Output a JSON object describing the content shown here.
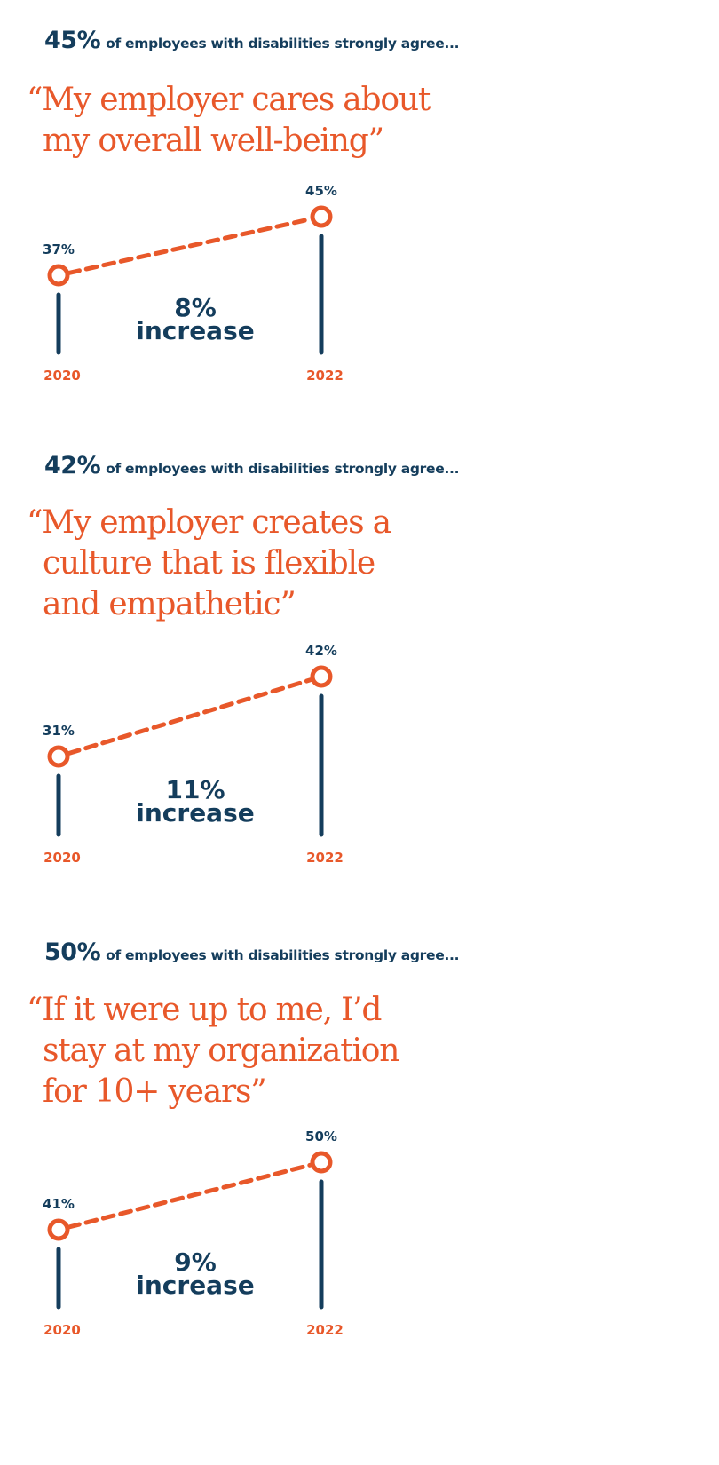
{
  "colors": {
    "navy": "#143d5c",
    "orange": "#e8582a"
  },
  "chart_data": [
    {
      "type": "line",
      "headline_value": "45%",
      "headline_text": "of employees with disabilities strongly agree...",
      "quote_lines": [
        "“My employer cares about",
        "my overall well-being”"
      ],
      "categories": [
        "2020",
        "2022"
      ],
      "values": [
        37,
        45
      ],
      "value_labels": [
        "37%",
        "45%"
      ],
      "change_value": "8%",
      "change_text": "increase"
    },
    {
      "type": "line",
      "headline_value": "42%",
      "headline_text": "of employees with disabilities strongly agree...",
      "quote_lines": [
        "“My employer creates a",
        "culture that is flexible",
        "and empathetic”"
      ],
      "categories": [
        "2020",
        "2022"
      ],
      "values": [
        31,
        42
      ],
      "value_labels": [
        "31%",
        "42%"
      ],
      "change_value": "11%",
      "change_text": "increase"
    },
    {
      "type": "line",
      "headline_value": "50%",
      "headline_text": "of employees with disabilities strongly agree...",
      "quote_lines": [
        "“If it were up to me, I’d",
        "stay at my organization",
        "for 10+ years”"
      ],
      "categories": [
        "2020",
        "2022"
      ],
      "values": [
        41,
        50
      ],
      "value_labels": [
        "41%",
        "50%"
      ],
      "change_value": "9%",
      "change_text": "increase"
    }
  ]
}
